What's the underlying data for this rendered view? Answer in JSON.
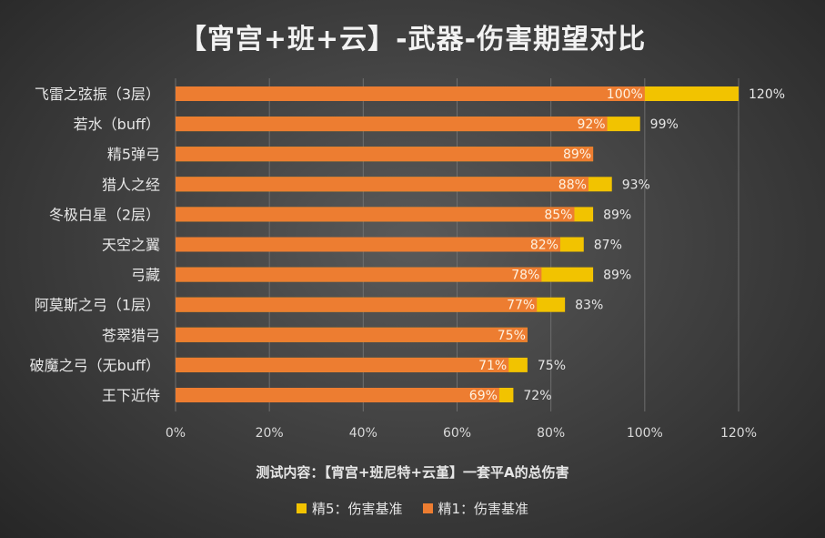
{
  "chart_data": {
    "type": "bar",
    "orientation": "horizontal",
    "title": "【宵宫+班+云】-武器-伤害期望对比",
    "xlabel": "测试内容：【宵宫+班尼特+云堇】一套平A的总伤害",
    "ylabel": "",
    "xlim": [
      0,
      120
    ],
    "ticks": [
      "0%",
      "20%",
      "40%",
      "60%",
      "80%",
      "100%",
      "120%"
    ],
    "grid": true,
    "legend_position": "bottom",
    "categories": [
      "飞雷之弦振（3层）",
      "若水（buff）",
      "精5弹弓",
      "猎人之经",
      "冬极白星（2层）",
      "天空之翼",
      "弓藏",
      "阿莫斯之弓（1层）",
      "苍翠猎弓",
      "破魔之弓（无buff）",
      "王下近侍"
    ],
    "series": [
      {
        "name": "精5：伤害基准",
        "color": "#f2c300",
        "values": [
          120,
          99,
          89,
          93,
          89,
          87,
          89,
          83,
          75,
          75,
          72
        ],
        "labels": [
          "120%",
          "99%",
          "",
          "93%",
          "89%",
          "87%",
          "89%",
          "83%",
          "",
          "75%",
          "72%"
        ]
      },
      {
        "name": "精1：伤害基准",
        "color": "#ed7d31",
        "values": [
          100,
          92,
          89,
          88,
          85,
          82,
          78,
          77,
          75,
          71,
          69
        ],
        "labels": [
          "100%",
          "92%",
          "89%",
          "88%",
          "85%",
          "82%",
          "78%",
          "77%",
          "75%",
          "71%",
          "69%"
        ]
      }
    ]
  },
  "legend": [
    {
      "label": "精5：伤害基准",
      "color": "#f2c300"
    },
    {
      "label": "精1：伤害基准",
      "color": "#ed7d31"
    }
  ]
}
